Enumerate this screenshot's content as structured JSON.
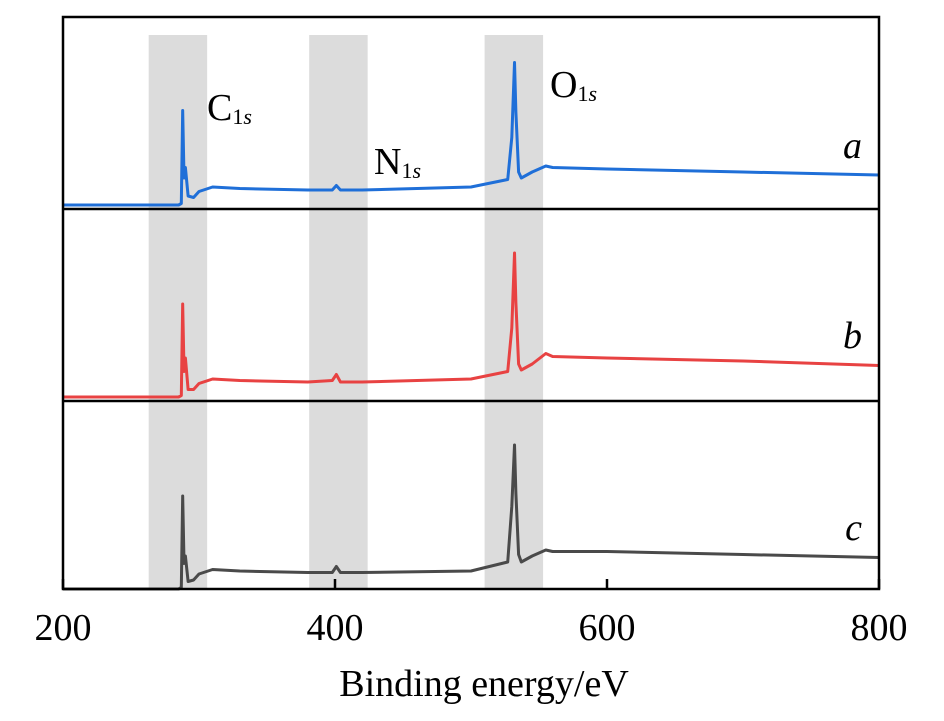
{
  "chart_data": {
    "type": "line",
    "xlabel": "Binding energy/eV",
    "ylabel": "",
    "xlim": [
      200,
      800
    ],
    "x_ticks": [
      200,
      400,
      600,
      800
    ],
    "grid": false,
    "layout": "three vertically stacked panels sharing the x axis",
    "highlight_bands": [
      {
        "label_main": "C",
        "label_sub": "1",
        "label_sub_italic": "s",
        "range": [
          263,
          306
        ]
      },
      {
        "label_main": "N",
        "label_sub": "1",
        "label_sub_italic": "s",
        "range": [
          381,
          424
        ]
      },
      {
        "label_main": "O",
        "label_sub": "1",
        "label_sub_italic": "s",
        "range": [
          510,
          553
        ]
      }
    ],
    "series": [
      {
        "name": "a",
        "color": "#1f6fd8",
        "x": [
          200,
          285,
          287,
          288,
          289,
          290,
          292,
          296,
          300,
          310,
          330,
          380,
          398,
          401,
          404,
          420,
          500,
          527,
          530,
          532,
          533,
          535,
          537,
          545,
          555,
          560,
          600,
          700,
          800
        ],
        "y": [
          0,
          0,
          0.01,
          0.63,
          0.18,
          0.25,
          0.06,
          0.05,
          0.09,
          0.12,
          0.11,
          0.1,
          0.1,
          0.13,
          0.1,
          0.1,
          0.12,
          0.17,
          0.45,
          0.95,
          0.62,
          0.22,
          0.18,
          0.22,
          0.26,
          0.25,
          0.24,
          0.22,
          0.2
        ]
      },
      {
        "name": "b",
        "color": "#e84242",
        "x": [
          200,
          285,
          287,
          288,
          289,
          290,
          292,
          296,
          300,
          310,
          330,
          380,
          398,
          401,
          404,
          420,
          500,
          527,
          530,
          532,
          533,
          535,
          537,
          545,
          555,
          560,
          600,
          700,
          800
        ],
        "y": [
          0,
          0,
          0.01,
          0.62,
          0.17,
          0.26,
          0.05,
          0.05,
          0.09,
          0.12,
          0.11,
          0.1,
          0.11,
          0.15,
          0.1,
          0.1,
          0.12,
          0.17,
          0.46,
          0.96,
          0.63,
          0.22,
          0.18,
          0.22,
          0.29,
          0.27,
          0.26,
          0.24,
          0.21
        ]
      },
      {
        "name": "c",
        "color": "#4a4a4a",
        "x": [
          200,
          285,
          287,
          288,
          289,
          290,
          292,
          296,
          300,
          310,
          330,
          380,
          398,
          401,
          404,
          420,
          500,
          527,
          530,
          532,
          533,
          535,
          537,
          545,
          555,
          560,
          600,
          700,
          800
        ],
        "y": [
          0,
          0,
          0.01,
          0.62,
          0.17,
          0.22,
          0.05,
          0.06,
          0.1,
          0.13,
          0.12,
          0.11,
          0.11,
          0.15,
          0.11,
          0.11,
          0.12,
          0.18,
          0.55,
          0.96,
          0.64,
          0.23,
          0.18,
          0.22,
          0.26,
          0.25,
          0.25,
          0.23,
          0.21
        ]
      }
    ]
  }
}
